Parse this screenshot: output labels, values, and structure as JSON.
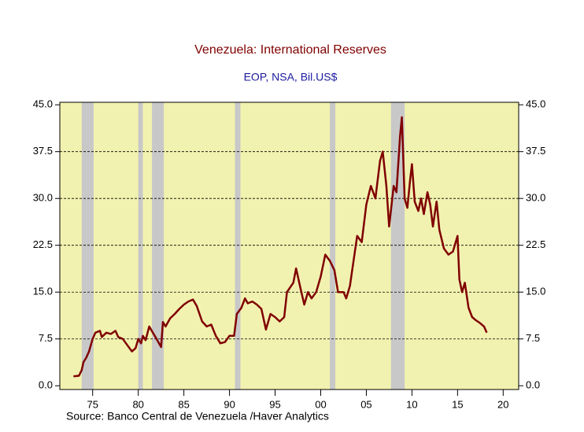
{
  "chart_data": {
    "type": "line",
    "title": "Venezuela: International Reserves",
    "subtitle": "EOP, NSA, Bil.US$",
    "source": "Source:   Banco Central de Venezuela /Haver Analytics",
    "x": [
      1972.9,
      1973.5,
      1973.8,
      1974.0,
      1974.3,
      1974.6,
      1975.0,
      1975.3,
      1975.8,
      1976.0,
      1976.5,
      1977.0,
      1977.5,
      1977.8,
      1978.3,
      1978.8,
      1979.3,
      1979.7,
      1980.0,
      1980.3,
      1980.5,
      1980.8,
      1981.2,
      1981.6,
      1982.0,
      1982.5,
      1982.7,
      1983.0,
      1983.5,
      1984.0,
      1984.5,
      1985.0,
      1985.5,
      1986.0,
      1986.4,
      1987.0,
      1987.5,
      1988.0,
      1988.5,
      1989.0,
      1989.5,
      1990.0,
      1990.5,
      1990.8,
      1991.3,
      1991.7,
      1992.0,
      1992.5,
      1993.0,
      1993.5,
      1994.0,
      1994.5,
      1995.0,
      1995.5,
      1996.0,
      1996.3,
      1997.0,
      1997.3,
      1997.8,
      1998.2,
      1998.6,
      1999.0,
      1999.5,
      2000.0,
      2000.5,
      2001.0,
      2001.5,
      2001.9,
      2002.5,
      2002.8,
      2003.2,
      2003.6,
      2004.0,
      2004.5,
      2005.0,
      2005.5,
      2006.0,
      2006.5,
      2006.8,
      2007.2,
      2007.5,
      2008.0,
      2008.3,
      2008.7,
      2008.9,
      2009.2,
      2009.5,
      2009.8,
      2010.0,
      2010.3,
      2010.7,
      2011.0,
      2011.3,
      2011.7,
      2012.0,
      2012.3,
      2012.7,
      2013.0,
      2013.5,
      2014.0,
      2014.5,
      2015.0,
      2015.2,
      2015.5,
      2015.8,
      2016.2,
      2016.6,
      2017.0,
      2017.5,
      2017.9,
      2018.2
    ],
    "series": [
      {
        "color": "#800000",
        "values": [
          1.5,
          1.6,
          2.5,
          3.8,
          4.5,
          5.5,
          7.5,
          8.5,
          8.8,
          7.8,
          8.5,
          8.3,
          8.8,
          7.8,
          7.5,
          6.5,
          5.5,
          6.0,
          7.5,
          6.8,
          8.0,
          7.3,
          9.5,
          8.5,
          7.5,
          6.2,
          10.2,
          9.5,
          10.8,
          11.5,
          12.3,
          13.0,
          13.5,
          13.8,
          12.8,
          10.3,
          9.5,
          9.8,
          8.0,
          6.8,
          7.0,
          8.0,
          8.0,
          11.5,
          12.5,
          14.0,
          13.2,
          13.5,
          13.0,
          12.3,
          9.0,
          11.5,
          11.0,
          10.3,
          11.0,
          15.0,
          16.5,
          18.8,
          15.5,
          13.0,
          15.0,
          14.0,
          15.0,
          17.5,
          21.0,
          20.0,
          18.5,
          15.0,
          15.0,
          14.0,
          16.0,
          20.0,
          24.0,
          23.0,
          29.0,
          32.0,
          30.0,
          36.0,
          37.5,
          32.0,
          25.5,
          32.0,
          31.0,
          40.0,
          43.0,
          30.0,
          28.5,
          33.0,
          35.5,
          29.5,
          28.0,
          30.0,
          27.5,
          31.0,
          29.0,
          25.5,
          29.5,
          25.0,
          22.0,
          21.0,
          21.5,
          24.0,
          17.0,
          15.0,
          16.5,
          12.5,
          11.0,
          10.5,
          10.0,
          9.5,
          8.5
        ]
      }
    ],
    "shaded_periods": [
      [
        1973.8,
        1975.1
      ],
      [
        1980.0,
        1980.5
      ],
      [
        1981.5,
        1982.8
      ],
      [
        1990.6,
        1991.2
      ],
      [
        2001.0,
        2001.6
      ],
      [
        2007.7,
        2009.2
      ]
    ],
    "shade_color": "#c8c8c8",
    "plot_color": "#f2f2b0",
    "xlim": [
      1971.4,
      2021.7
    ],
    "xticks": [
      {
        "value": 1975,
        "label": "75"
      },
      {
        "value": 1980,
        "label": "80"
      },
      {
        "value": 1985,
        "label": "85"
      },
      {
        "value": 1990,
        "label": "90"
      },
      {
        "value": 1995,
        "label": "95"
      },
      {
        "value": 2000,
        "label": "00"
      },
      {
        "value": 2005,
        "label": "05"
      },
      {
        "value": 2010,
        "label": "10"
      },
      {
        "value": 2015,
        "label": "15"
      },
      {
        "value": 2020,
        "label": "20"
      }
    ],
    "ylim": [
      -0.6,
      45.4
    ],
    "yticks": [
      {
        "value": 0,
        "label": "0.0"
      },
      7.5,
      {
        "value": 15,
        "label": "15.0"
      },
      22.5,
      {
        "value": 30,
        "label": "30.0"
      },
      37.5,
      {
        "value": 45,
        "label": "45.0"
      }
    ],
    "grid": true
  }
}
